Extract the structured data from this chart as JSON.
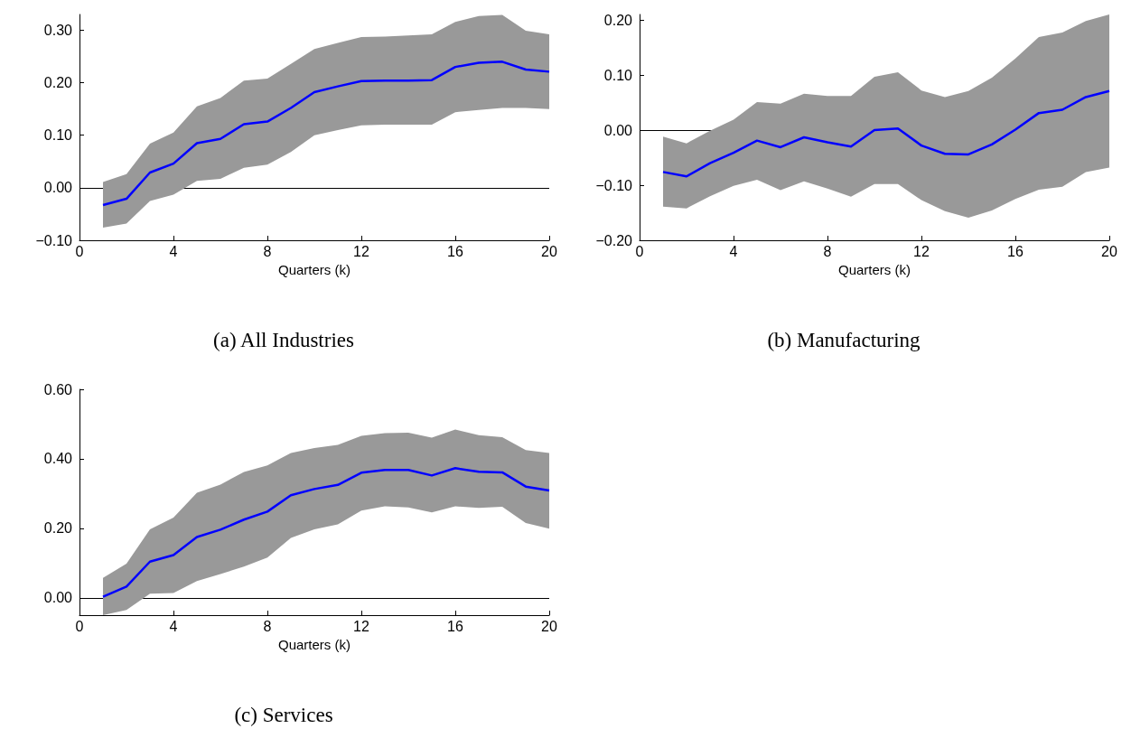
{
  "chart_data": [
    {
      "type": "line",
      "title": "(a) All Industries",
      "xlabel": "Quarters (k)",
      "xlim": [
        0,
        20
      ],
      "xticks": [
        0,
        4,
        8,
        12,
        16,
        20
      ],
      "ylim": [
        -0.1,
        0.33
      ],
      "yticks": [
        {
          "value": -0.1,
          "label": "−0.10"
        },
        {
          "value": 0,
          "label": "0.00"
        },
        {
          "value": 0.1,
          "label": "0.10"
        },
        {
          "value": 0.2,
          "label": "0.20"
        },
        {
          "value": 0.3,
          "label": "0.30"
        }
      ],
      "ref_lines": [
        {
          "axis": "y",
          "value": 0,
          "color": "#000000"
        }
      ],
      "x": [
        1,
        2,
        3,
        4,
        5,
        6,
        7,
        8,
        9,
        10,
        11,
        12,
        13,
        14,
        15,
        16,
        17,
        18,
        19,
        20
      ],
      "series": [
        {
          "color": "#0000ff",
          "values": [
            -0.033,
            -0.021,
            0.029,
            0.046,
            0.085,
            0.093,
            0.121,
            0.126,
            0.152,
            0.182,
            0.193,
            0.203,
            0.204,
            0.204,
            0.205,
            0.23,
            0.238,
            0.24,
            0.225,
            0.221
          ],
          "upper": [
            0.011,
            0.026,
            0.084,
            0.105,
            0.155,
            0.171,
            0.204,
            0.208,
            0.236,
            0.264,
            0.276,
            0.287,
            0.288,
            0.29,
            0.292,
            0.316,
            0.327,
            0.329,
            0.299,
            0.292
          ],
          "lower": [
            -0.076,
            -0.068,
            -0.025,
            -0.013,
            0.013,
            0.017,
            0.038,
            0.044,
            0.068,
            0.1,
            0.11,
            0.119,
            0.12,
            0.12,
            0.12,
            0.144,
            0.148,
            0.152,
            0.152,
            0.15
          ]
        }
      ]
    },
    {
      "type": "line",
      "title": "(b) Manufacturing",
      "xlabel": "Quarters (k)",
      "xlim": [
        0,
        20
      ],
      "xticks": [
        0,
        4,
        8,
        12,
        16,
        20
      ],
      "ylim": [
        -0.2,
        0.21
      ],
      "yticks": [
        {
          "value": -0.2,
          "label": "−0.20"
        },
        {
          "value": -0.1,
          "label": "−0.10"
        },
        {
          "value": 0,
          "label": "0.00"
        },
        {
          "value": 0.1,
          "label": "0.10"
        },
        {
          "value": 0.2,
          "label": "0.20"
        }
      ],
      "ref_lines": [
        {
          "axis": "y",
          "value": 0,
          "color": "#000000"
        }
      ],
      "x": [
        1,
        2,
        3,
        4,
        5,
        6,
        7,
        8,
        9,
        10,
        11,
        12,
        13,
        14,
        15,
        16,
        17,
        18,
        19,
        20
      ],
      "series": [
        {
          "color": "#0000ff",
          "values": [
            -0.076,
            -0.084,
            -0.06,
            -0.041,
            -0.019,
            -0.031,
            -0.013,
            -0.022,
            -0.03,
            0,
            0.003,
            -0.028,
            -0.043,
            -0.044,
            -0.026,
            0.001,
            0.031,
            0.037,
            0.06,
            0.071
          ],
          "upper": [
            -0.012,
            -0.024,
            -0.001,
            0.019,
            0.051,
            0.048,
            0.066,
            0.062,
            0.062,
            0.097,
            0.105,
            0.072,
            0.06,
            0.071,
            0.095,
            0.13,
            0.169,
            0.177,
            0.198,
            0.21
          ],
          "lower": [
            -0.139,
            -0.142,
            -0.12,
            -0.101,
            -0.09,
            -0.109,
            -0.093,
            -0.106,
            -0.121,
            -0.098,
            -0.098,
            -0.127,
            -0.147,
            -0.159,
            -0.146,
            -0.125,
            -0.108,
            -0.103,
            -0.076,
            -0.068
          ]
        }
      ]
    },
    {
      "type": "line",
      "title": "(c) Services",
      "xlabel": "Quarters (k)",
      "xlim": [
        0,
        20
      ],
      "xticks": [
        0,
        4,
        8,
        12,
        16,
        20
      ],
      "ylim": [
        -0.05,
        0.6
      ],
      "yticks": [
        {
          "value": 0,
          "label": "0.00"
        },
        {
          "value": 0.2,
          "label": "0.20"
        },
        {
          "value": 0.4,
          "label": "0.40"
        },
        {
          "value": 0.6,
          "label": "0.60"
        }
      ],
      "ref_lines": [
        {
          "axis": "y",
          "value": 0,
          "color": "#000000"
        }
      ],
      "x": [
        1,
        2,
        3,
        4,
        5,
        6,
        7,
        8,
        9,
        10,
        11,
        12,
        13,
        14,
        15,
        16,
        17,
        18,
        19,
        20
      ],
      "series": [
        {
          "color": "#0000ff",
          "values": [
            0.003,
            0.032,
            0.104,
            0.123,
            0.175,
            0.196,
            0.225,
            0.248,
            0.295,
            0.313,
            0.325,
            0.36,
            0.368,
            0.368,
            0.352,
            0.373,
            0.363,
            0.361,
            0.32,
            0.309
          ],
          "upper": [
            0.057,
            0.098,
            0.197,
            0.231,
            0.302,
            0.326,
            0.362,
            0.381,
            0.417,
            0.431,
            0.44,
            0.466,
            0.474,
            0.475,
            0.461,
            0.484,
            0.468,
            0.462,
            0.425,
            0.417
          ],
          "lower": [
            -0.05,
            -0.035,
            0.012,
            0.014,
            0.048,
            0.068,
            0.09,
            0.116,
            0.172,
            0.197,
            0.211,
            0.251,
            0.263,
            0.26,
            0.246,
            0.263,
            0.259,
            0.262,
            0.215,
            0.199
          ]
        }
      ]
    }
  ]
}
